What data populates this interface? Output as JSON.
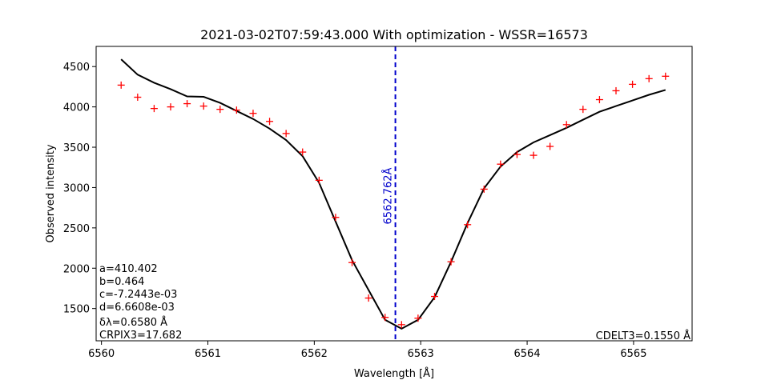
{
  "chart_data": {
    "type": "line",
    "title": "2021-03-02T07:59:43.000 With optimization - WSSR=16573",
    "xlabel": "Wavelength [Å]",
    "ylabel": "Observed intensity",
    "xlim": [
      6559.95,
      6565.55
    ],
    "ylim": [
      1100,
      4750
    ],
    "x_ticks": [
      6560,
      6561,
      6562,
      6563,
      6564,
      6565
    ],
    "x_tick_labels": [
      "6560",
      "6561",
      "6562",
      "6563",
      "6564",
      "6565"
    ],
    "y_ticks": [
      1500,
      2000,
      2500,
      3000,
      3500,
      4000,
      4500
    ],
    "y_tick_labels": [
      "1500",
      "2000",
      "2500",
      "3000",
      "3500",
      "4000",
      "4500"
    ],
    "series": [
      {
        "kind": "scatter",
        "marker": "plus",
        "color": "#ff0000",
        "x": [
          6560.185,
          6560.34,
          6560.495,
          6560.65,
          6560.805,
          6560.96,
          6561.115,
          6561.27,
          6561.425,
          6561.58,
          6561.735,
          6561.89,
          6562.045,
          6562.2,
          6562.355,
          6562.51,
          6562.665,
          6562.82,
          6562.975,
          6563.13,
          6563.285,
          6563.44,
          6563.595,
          6563.75,
          6563.905,
          6564.06,
          6564.215,
          6564.37,
          6564.525,
          6564.68,
          6564.835,
          6564.99,
          6565.145,
          6565.3
        ],
        "y": [
          4270,
          4120,
          3980,
          4000,
          4040,
          4010,
          3970,
          3960,
          3920,
          3820,
          3670,
          3440,
          3090,
          2630,
          2070,
          1630,
          1390,
          1300,
          1380,
          1650,
          2080,
          2540,
          2980,
          3290,
          3410,
          3400,
          3510,
          3780,
          3970,
          4090,
          4200,
          4280,
          4350,
          4380
        ]
      },
      {
        "kind": "line",
        "color": "#000000",
        "x": [
          6560.185,
          6560.34,
          6560.495,
          6560.65,
          6560.805,
          6560.96,
          6561.115,
          6561.27,
          6561.425,
          6561.58,
          6561.735,
          6561.89,
          6562.045,
          6562.2,
          6562.355,
          6562.51,
          6562.665,
          6562.82,
          6562.975,
          6563.13,
          6563.285,
          6563.44,
          6563.595,
          6563.75,
          6563.905,
          6564.06,
          6564.215,
          6564.37,
          6564.525,
          6564.68,
          6564.835,
          6564.99,
          6565.145,
          6565.3
        ],
        "y": [
          4590,
          4400,
          4300,
          4220,
          4130,
          4125,
          4050,
          3950,
          3850,
          3730,
          3590,
          3390,
          3060,
          2580,
          2100,
          1730,
          1360,
          1250,
          1360,
          1640,
          2080,
          2560,
          2990,
          3260,
          3440,
          3560,
          3650,
          3740,
          3840,
          3940,
          4010,
          4080,
          4150,
          4210
        ]
      }
    ],
    "vline": {
      "x": 6562.762,
      "color": "#0000cc",
      "style": "dashed",
      "label": "6562.762Å"
    },
    "annotations": [
      "a=410.402",
      "b=0.464",
      "c=-7.2443e-03",
      "d=6.6608e-03",
      "δλ=0.6580 Å",
      "CRPIX3=17.682"
    ],
    "corner_note": "CDELT3=0.1550 Å"
  }
}
